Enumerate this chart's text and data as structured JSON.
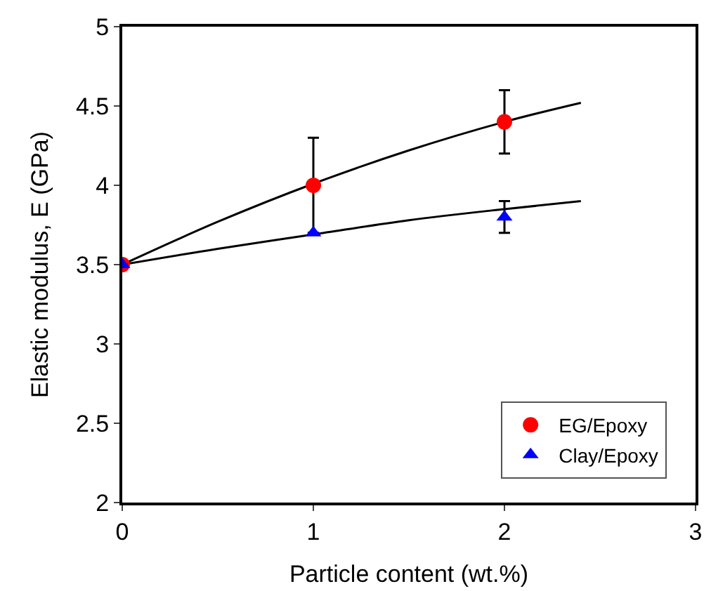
{
  "chart_data": {
    "type": "scatter",
    "xlabel": "Particle content (wt.%)",
    "ylabel": "Elastic modulus, E (GPa)",
    "x": [
      0,
      1,
      2
    ],
    "series": [
      {
        "name": "EG/Epoxy",
        "color": "#ff0000",
        "marker": "circle",
        "values": [
          3.5,
          4.0,
          4.4
        ],
        "errors": [
          null,
          0.3,
          0.2
        ]
      },
      {
        "name": "Clay/Epoxy",
        "color": "#0000ff",
        "marker": "triangle",
        "values": [
          3.5,
          3.7,
          3.8
        ],
        "errors": [
          null,
          null,
          0.1
        ]
      },
      {
        "type": "line",
        "color": "#000000",
        "marker": "none",
        "x": [
          0,
          0.5,
          1,
          1.5,
          2,
          2.4
        ],
        "values": [
          3.5,
          3.77,
          4.01,
          4.22,
          4.4,
          4.52
        ]
      },
      {
        "type": "line",
        "color": "#000000",
        "marker": "none",
        "x": [
          0,
          0.5,
          1,
          1.5,
          2,
          2.4
        ],
        "values": [
          3.5,
          3.6,
          3.69,
          3.78,
          3.85,
          3.9
        ]
      }
    ],
    "xlim": [
      0,
      3
    ],
    "xticks": [
      0,
      1,
      2,
      3
    ],
    "ylim": [
      2,
      5
    ],
    "yticks": [
      2,
      2.5,
      3,
      3.5,
      4,
      4.5,
      5
    ],
    "legend": "bottom right"
  }
}
